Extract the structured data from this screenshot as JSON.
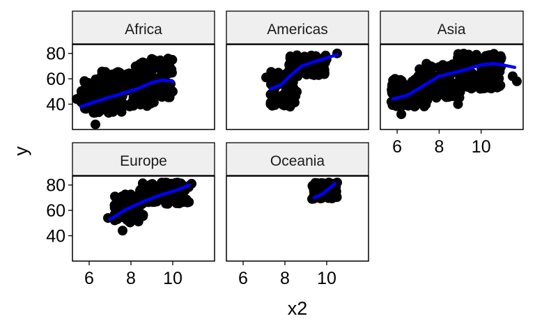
{
  "chart_data": {
    "type": "scatter",
    "facet_by": "continent",
    "xlabel": "x2",
    "ylabel": "y",
    "xlim": [
      5.2,
      12.0
    ],
    "ylim": [
      20,
      87
    ],
    "x_ticks": [
      6,
      8,
      10
    ],
    "y_ticks": [
      40,
      60,
      80
    ],
    "point_color": "#000000",
    "smooth_color": "#0000ff",
    "strip_fill": "#efefef",
    "panels": [
      {
        "name": "Africa",
        "point_clusters": [
          {
            "x": [
              5.6,
              7.6
            ],
            "y": [
              33,
              60
            ]
          },
          {
            "x": [
              6.5,
              9.2
            ],
            "y": [
              38,
              66
            ]
          },
          {
            "x": [
              8.0,
              10.0
            ],
            "y": [
              45,
              76
            ]
          }
        ],
        "point_outliers": [
          [
            5.4,
            44
          ],
          [
            6.3,
            24
          ],
          [
            9.9,
            56
          ],
          [
            10.0,
            50
          ]
        ],
        "smooth": {
          "x": [
            5.6,
            6.5,
            7.5,
            8.3,
            9.0,
            9.5,
            10.0
          ],
          "y": [
            38,
            43,
            48,
            52,
            57,
            59,
            58
          ]
        }
      },
      {
        "name": "Americas",
        "point_clusters": [
          {
            "x": [
              7.3,
              8.6
            ],
            "y": [
              38,
              68
            ]
          },
          {
            "x": [
              8.2,
              10.0
            ],
            "y": [
              62,
              79
            ]
          }
        ],
        "point_outliers": [
          [
            7.1,
            61
          ],
          [
            10.5,
            80
          ]
        ],
        "smooth": {
          "x": [
            7.3,
            7.8,
            8.3,
            8.8,
            9.5,
            10.5
          ],
          "y": [
            52,
            55,
            63,
            70,
            74,
            79
          ]
        }
      },
      {
        "name": "Asia",
        "point_clusters": [
          {
            "x": [
              5.7,
              7.5
            ],
            "y": [
              38,
              60
            ]
          },
          {
            "x": [
              6.8,
              9.0
            ],
            "y": [
              45,
              72
            ]
          },
          {
            "x": [
              8.8,
              11.0
            ],
            "y": [
              52,
              80
            ]
          }
        ],
        "point_outliers": [
          [
            11.7,
            58
          ],
          [
            11.5,
            62
          ],
          [
            8.9,
            40
          ],
          [
            6.2,
            32
          ],
          [
            5.9,
            60
          ]
        ],
        "smooth": {
          "x": [
            5.8,
            6.5,
            7.2,
            8.0,
            9.0,
            10.0,
            10.6,
            11.0,
            11.6
          ],
          "y": [
            44,
            47,
            54,
            62,
            66,
            71,
            72,
            71,
            69
          ]
        }
      },
      {
        "name": "Europe",
        "point_clusters": [
          {
            "x": [
              7.2,
              8.6
            ],
            "y": [
              50,
              74
            ]
          },
          {
            "x": [
              8.4,
              10.8
            ],
            "y": [
              65,
              82
            ]
          }
        ],
        "point_outliers": [
          [
            6.9,
            54
          ],
          [
            7.6,
            44
          ],
          [
            10.9,
            81
          ]
        ],
        "smooth": {
          "x": [
            7.0,
            7.8,
            8.6,
            9.4,
            10.2,
            10.8
          ],
          "y": [
            53,
            61,
            67,
            72,
            76,
            80
          ]
        }
      },
      {
        "name": "Oceania",
        "point_clusters": [
          {
            "x": [
              9.3,
              10.5
            ],
            "y": [
              69,
              82
            ]
          }
        ],
        "point_outliers": [
          [
            9.3,
            69
          ],
          [
            10.5,
            82
          ]
        ],
        "smooth": {
          "x": [
            9.4,
            9.8,
            10.1,
            10.4
          ],
          "y": [
            70,
            73,
            77,
            81
          ]
        }
      }
    ]
  }
}
